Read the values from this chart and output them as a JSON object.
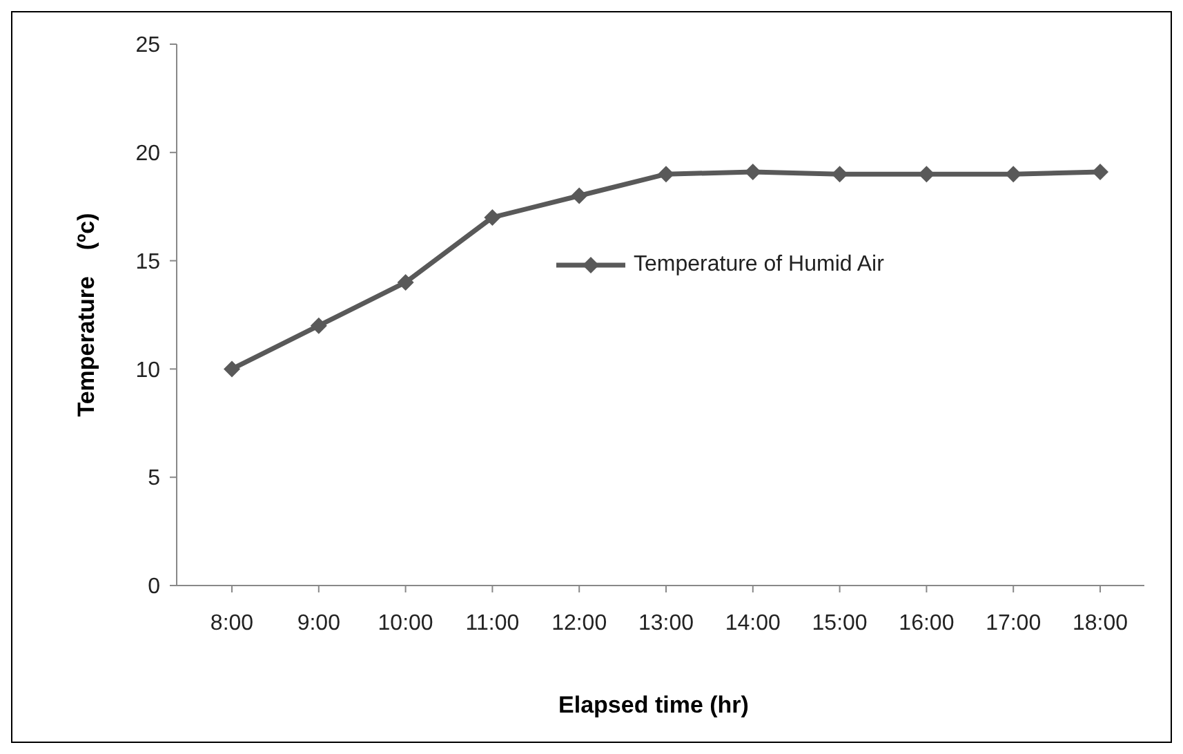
{
  "chart_data": {
    "type": "line",
    "xlabel": "Elapsed time   (hr)",
    "ylabel": "Temperature    (ºc)",
    "categories": [
      "8:00",
      "9:00",
      "10:00",
      "11:00",
      "12:00",
      "13:00",
      "14:00",
      "15:00",
      "16:00",
      "17:00",
      "18:00"
    ],
    "series": [
      {
        "name": "Temperature of Humid Air",
        "color": "#595959",
        "values": [
          10,
          12,
          14,
          17,
          18,
          19,
          19.1,
          19,
          19,
          19,
          19.1
        ]
      }
    ],
    "ylim": [
      0,
      25
    ],
    "yticks": [
      0,
      5,
      10,
      15,
      20,
      25
    ],
    "grid": false,
    "legend": "center",
    "marker": "diamond",
    "line_style": "solid"
  }
}
